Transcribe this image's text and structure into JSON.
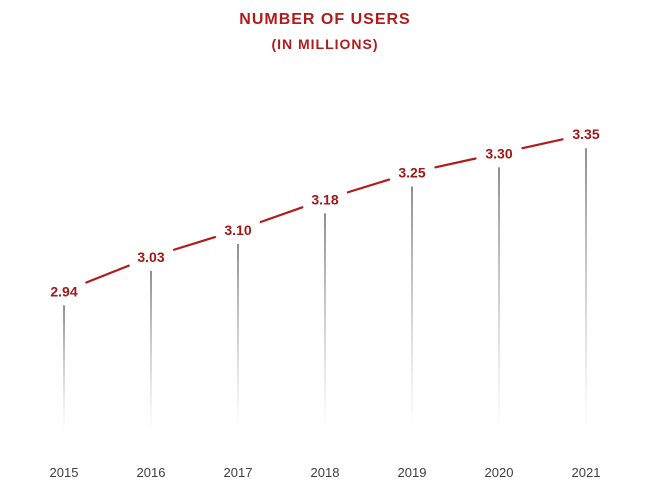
{
  "chart_data": {
    "type": "line",
    "title": "NUMBER  OF USERS",
    "subtitle": "(IN MILLIONS)",
    "categories": [
      "2015",
      "2016",
      "2017",
      "2018",
      "2019",
      "2020",
      "2021"
    ],
    "values": [
      2.94,
      3.03,
      3.1,
      3.18,
      3.25,
      3.3,
      3.35
    ],
    "data_labels": [
      "2.94",
      "3.03",
      "3.10",
      "3.18",
      "3.25",
      "3.30",
      "3.35"
    ],
    "xlabel": "",
    "ylabel": "",
    "ylim": [
      2.5,
      3.4
    ],
    "grid": false,
    "legend": "none",
    "drop_lines": true,
    "colors": {
      "line": "#b01c1c",
      "label": "#a01818",
      "drop_line": "#555555",
      "tick": "#404040"
    }
  }
}
